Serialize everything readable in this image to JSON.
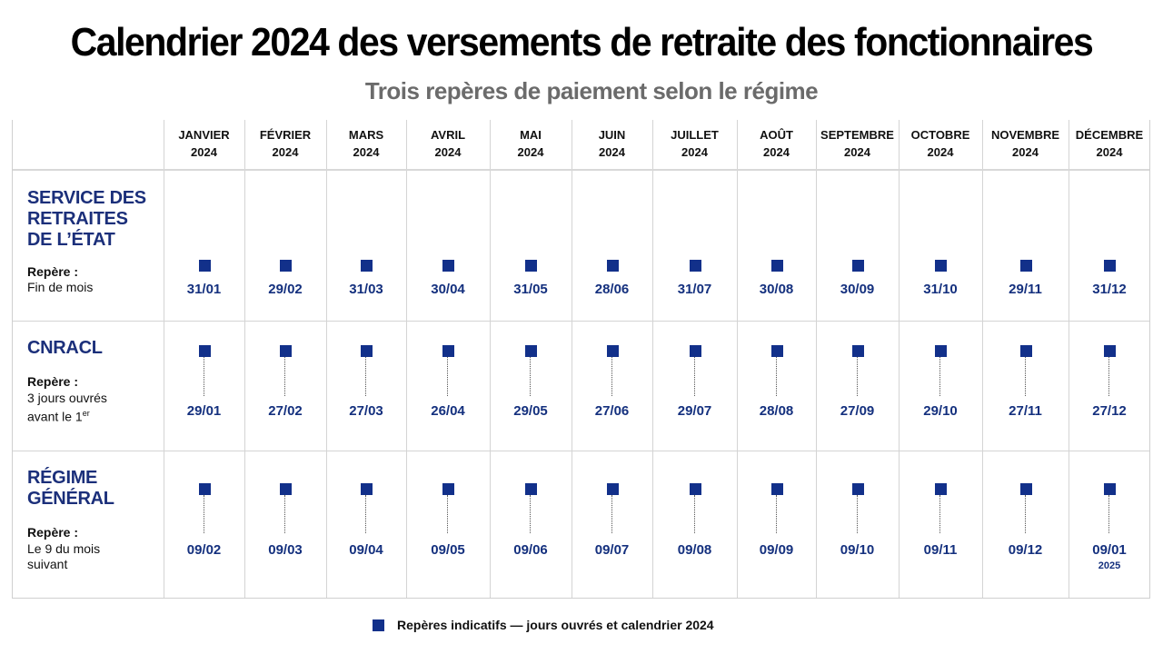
{
  "title": "Calendrier 2024 des versements de retraite des fonctionnaires",
  "subtitle": "Trois repères de paiement selon le régime",
  "months": [
    {
      "name": "JANVIER",
      "year": "2024"
    },
    {
      "name": "FÉVRIER",
      "year": "2024"
    },
    {
      "name": "MARS",
      "year": "2024"
    },
    {
      "name": "AVRIL",
      "year": "2024"
    },
    {
      "name": "MAI",
      "year": "2024"
    },
    {
      "name": "JUIN",
      "year": "2024"
    },
    {
      "name": "JUILLET",
      "year": "2024"
    },
    {
      "name": "AOÛT",
      "year": "2024"
    },
    {
      "name": "SEPTEMBRE",
      "year": "2024"
    },
    {
      "name": "OCTOBRE",
      "year": "2024"
    },
    {
      "name": "NOVEMBRE",
      "year": "2024"
    },
    {
      "name": "DÉCEMBRE",
      "year": "2024"
    }
  ],
  "regimes": [
    {
      "name_lines": [
        "SERVICE DES",
        "RETRAITES",
        "DE L’ÉTAT"
      ],
      "repere_label": "Repère :",
      "repere_lines": [
        "Fin de mois"
      ],
      "dates": [
        "31/01",
        "29/02",
        "31/03",
        "30/04",
        "31/05",
        "28/06",
        "31/07",
        "30/08",
        "30/09",
        "31/10",
        "29/11",
        "31/12"
      ]
    },
    {
      "name_lines": [
        "CNRACL"
      ],
      "repere_label": "Repère :",
      "repere_lines": [
        "3 jours ouvrés",
        "avant le 1"
      ],
      "repere_sup": "er",
      "dates": [
        "29/01",
        "27/02",
        "27/03",
        "26/04",
        "29/05",
        "27/06",
        "29/07",
        "28/08",
        "27/09",
        "29/10",
        "27/11",
        "27/12"
      ]
    },
    {
      "name_lines": [
        "RÉGIME",
        "GÉNÉRAL"
      ],
      "repere_label": "Repère :",
      "repere_lines": [
        "Le 9 du mois",
        "suivant"
      ],
      "dates": [
        "09/02",
        "09/03",
        "09/04",
        "09/05",
        "09/06",
        "09/07",
        "09/08",
        "09/09",
        "09/10",
        "09/11",
        "09/12",
        "09/01"
      ],
      "last_year_note": "2025"
    }
  ],
  "legend": {
    "text": "Repères indicatifs — jours ouvrés et calendrier 2024",
    "marker_color": "#12308a"
  },
  "colors": {
    "regime_name": "#1b2f7a",
    "date": "#14307e",
    "marker": "#12308a"
  }
}
